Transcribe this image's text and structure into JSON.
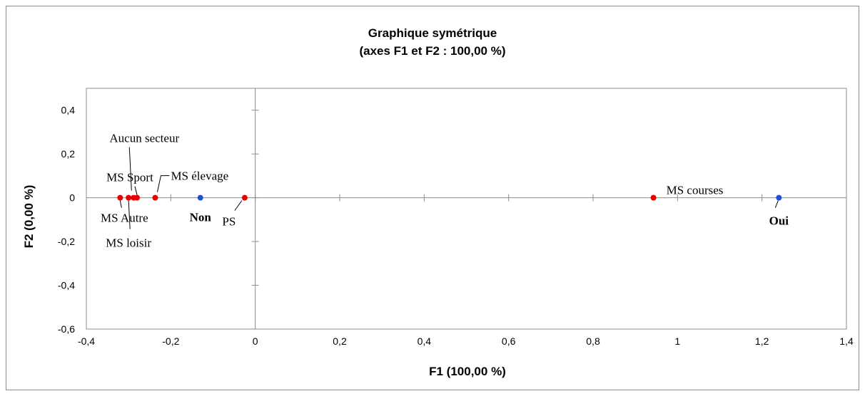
{
  "chart_data": {
    "type": "scatter",
    "title": "Graphique symétrique",
    "subtitle": "(axes F1 et F2 : 100,00 %)",
    "xlabel": "F1 (100,00 %)",
    "ylabel": "F2 (0,00 %)",
    "xlim": [
      -0.4,
      1.4
    ],
    "ylim": [
      -0.6,
      0.5
    ],
    "xticks": [
      -0.4,
      -0.2,
      0,
      0.2,
      0.4,
      0.6,
      0.8,
      1.0,
      1.2,
      1.4
    ],
    "xtick_labels": [
      "-0,4",
      "-0,2",
      "0",
      "0,2",
      "0,4",
      "0,6",
      "0,8",
      "1",
      "1,2",
      "1,4"
    ],
    "yticks": [
      -0.6,
      -0.4,
      -0.2,
      0,
      0.2,
      0.4
    ],
    "ytick_labels": [
      "-0,6",
      "-0,4",
      "-0,2",
      "0",
      "0,2",
      "0,4"
    ],
    "grid": false,
    "colors": {
      "rows": "#e60000",
      "columns": "#1f4fd6"
    },
    "series": [
      {
        "color": "#e60000",
        "points": [
          {
            "label": "MS Autre",
            "x": -0.32,
            "y": 0
          },
          {
            "label": "MS loisir",
            "x": -0.3,
            "y": 0
          },
          {
            "label": "Aucun secteur",
            "x": -0.288,
            "y": 0
          },
          {
            "label": "MS Sport",
            "x": -0.28,
            "y": 0
          },
          {
            "label": "MS élevage",
            "x": -0.237,
            "y": 0
          },
          {
            "label": "PS",
            "x": -0.025,
            "y": 0
          },
          {
            "label": "MS courses",
            "x": 0.943,
            "y": 0
          }
        ]
      },
      {
        "color": "#1f4fd6",
        "points": [
          {
            "label": "Non",
            "x": -0.13,
            "y": 0,
            "bold": true
          },
          {
            "label": "Oui",
            "x": 1.24,
            "y": 0,
            "bold": true
          }
        ]
      }
    ]
  }
}
